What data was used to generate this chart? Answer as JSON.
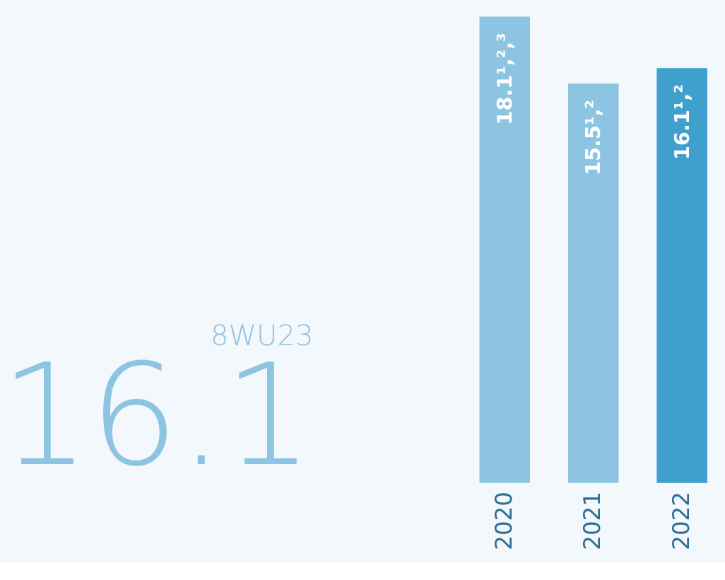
{
  "chart_data": {
    "type": "bar",
    "categories": [
      "2020",
      "2021",
      "2022"
    ],
    "values": [
      18.1,
      15.5,
      16.1
    ],
    "colors": [
      "#8cc4e2",
      "#8cc4e2",
      "#3fa0cd"
    ],
    "value_labels": [
      "18.1¹,²,³",
      "15.5¹,²",
      "16.1¹,²"
    ],
    "annotations": [
      "8WU23",
      "16.1"
    ]
  }
}
